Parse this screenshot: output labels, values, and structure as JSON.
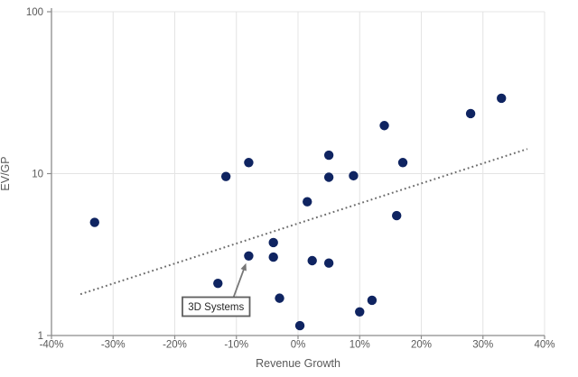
{
  "chart_data": {
    "type": "scatter",
    "title": "",
    "xlabel": "Revenue Growth",
    "ylabel": "EV/GP",
    "x_axis": {
      "min": -40,
      "max": 40,
      "unit": "%",
      "ticks": [
        {
          "v": -40,
          "label": "-40%"
        },
        {
          "v": -30,
          "label": "-30%"
        },
        {
          "v": -20,
          "label": "-20%"
        },
        {
          "v": -10,
          "label": "-10%"
        },
        {
          "v": 0,
          "label": "0%"
        },
        {
          "v": 10,
          "label": "10%"
        },
        {
          "v": 20,
          "label": "20%"
        },
        {
          "v": 30,
          "label": "30%"
        },
        {
          "v": 40,
          "label": "40%"
        }
      ]
    },
    "y_axis": {
      "scale": "log",
      "min": 1,
      "max": 100,
      "ticks": [
        {
          "v": 1,
          "label": "1"
        },
        {
          "v": 10,
          "label": "10"
        },
        {
          "v": 100,
          "label": "100"
        }
      ]
    },
    "grid": true,
    "legend": "none",
    "points": [
      {
        "x": -33,
        "y": 5.0
      },
      {
        "x": -13,
        "y": 2.1
      },
      {
        "x": -11.7,
        "y": 9.6
      },
      {
        "x": -8,
        "y": 11.7
      },
      {
        "x": -8,
        "y": 3.1
      },
      {
        "x": -4,
        "y": 3.75
      },
      {
        "x": -4,
        "y": 3.05
      },
      {
        "x": -3,
        "y": 1.7
      },
      {
        "x": 0.3,
        "y": 1.15
      },
      {
        "x": 1.5,
        "y": 6.7
      },
      {
        "x": 2.3,
        "y": 2.9
      },
      {
        "x": 5,
        "y": 13.0
      },
      {
        "x": 5,
        "y": 9.5
      },
      {
        "x": 5,
        "y": 2.8
      },
      {
        "x": 9,
        "y": 9.7
      },
      {
        "x": 10,
        "y": 1.4
      },
      {
        "x": 12,
        "y": 1.65
      },
      {
        "x": 14,
        "y": 19.8
      },
      {
        "x": 16,
        "y": 5.5
      },
      {
        "x": 17,
        "y": 11.7
      },
      {
        "x": 28,
        "y": 23.5
      },
      {
        "x": 33,
        "y": 29.2
      }
    ],
    "trendline": {
      "style": "dotted",
      "x1": -35.3,
      "y1": 1.8,
      "x2": 37.2,
      "y2": 14.2
    },
    "annotation": {
      "text": "3D Systems",
      "target": {
        "x": -8,
        "y": 3.1
      }
    },
    "colors": {
      "marker": "#0f2461",
      "trendline": "#6b6b6b",
      "grid": "#e4e4e4",
      "axis": "#8c8c8c",
      "tick_label": "#595959",
      "axis_title": "#595959",
      "annotation_border": "#5f5f5f",
      "annotation_text": "#262626",
      "arrow": "#777777",
      "background": "#ffffff"
    }
  }
}
